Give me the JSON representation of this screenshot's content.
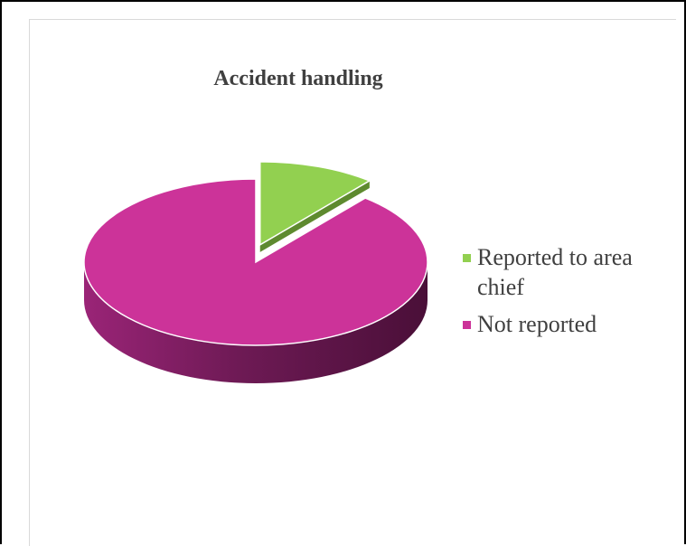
{
  "chart_data": {
    "type": "pie",
    "style": "3d-exploded",
    "title": "Accident handling",
    "categories": [
      "Reported to area chief",
      "Not reported"
    ],
    "values": [
      11,
      89
    ],
    "colors": [
      "#92d050",
      "#cc3399"
    ],
    "legend_position": "right",
    "exploded_slice": "Reported to area chief"
  }
}
